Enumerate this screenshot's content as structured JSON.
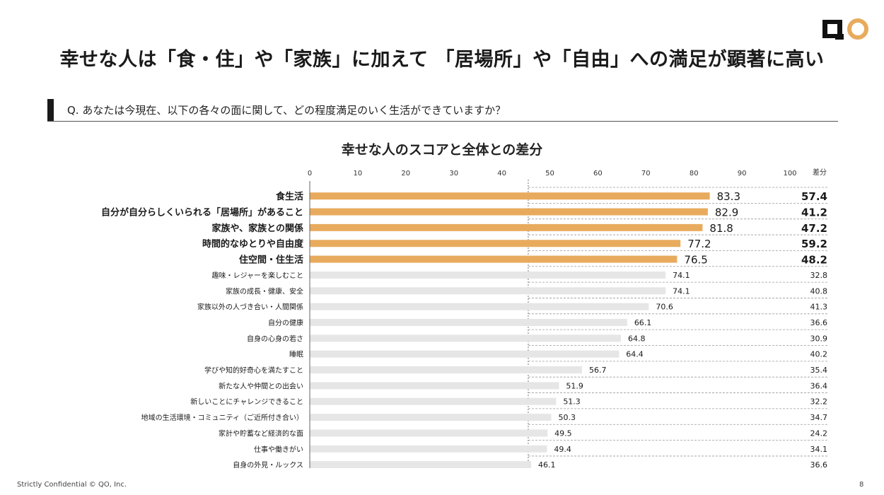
{
  "header": {
    "title": "幸せな人は「食・住」や「家族」に加えて 「居場所」や「自由」への満足が顕著に高い",
    "logo_text": "QO"
  },
  "question": {
    "text": "Q. あなたは今現在、以下の各々の面に関して、どの程度満足のいく生活ができていますか？"
  },
  "chart_data": {
    "type": "bar",
    "orientation": "horizontal",
    "title": "幸せな人のスコアと全体との差分",
    "xlim": [
      0,
      100
    ],
    "x_ticks": [
      "0",
      "10",
      "20",
      "30",
      "40",
      "50",
      "60",
      "70",
      "80",
      "90",
      "100"
    ],
    "diff_header": "差分",
    "categories": [
      "食生活",
      "自分が自分らしくいられる「居場所」があること",
      "家族や、家族との関係",
      "時間的なゆとりや自由度",
      "住空間・住生活",
      "趣味・レジャーを楽しむこと",
      "家族の成長・健康、安全",
      "家族以外の人づき合い・人間関係",
      "自分の健康",
      "自身の心身の若さ",
      "睡眠",
      "学びや知的好奇心を満たすこと",
      "新たな人や仲間との出会い",
      "新しいことにチャレンジできること",
      "地域の生活環境・コミュニティ（ご近所付き合い）",
      "家計や貯蓄など経済的な面",
      "仕事や働きがい",
      "自身の外見・ルックス"
    ],
    "values": [
      83.3,
      82.9,
      81.8,
      77.2,
      76.5,
      74.1,
      74.1,
      70.6,
      66.1,
      64.8,
      64.4,
      56.7,
      51.9,
      51.3,
      50.3,
      49.5,
      49.4,
      46.1
    ],
    "value_labels": [
      "83.3",
      "82.9",
      "81.8",
      "77.2",
      "76.5",
      "74.1",
      "74.1",
      "70.6",
      "66.1",
      "64.8",
      "64.4",
      "56.7",
      "51.9",
      "51.3",
      "50.3",
      "49.5",
      "49.4",
      "46.1"
    ],
    "diff_labels": [
      "57.4",
      "41.2",
      "47.2",
      "59.2",
      "48.2",
      "32.8",
      "40.8",
      "41.3",
      "36.6",
      "30.9",
      "40.2",
      "35.4",
      "36.4",
      "32.2",
      "34.7",
      "24.2",
      "34.1",
      "36.6"
    ],
    "highlighted_count": 5,
    "colors": {
      "highlight": "#E8AB5E",
      "normal": "#E6E6E6"
    }
  },
  "footer": {
    "confidential": "Strictly Confidential  © QO, Inc.",
    "page_number": "8"
  }
}
